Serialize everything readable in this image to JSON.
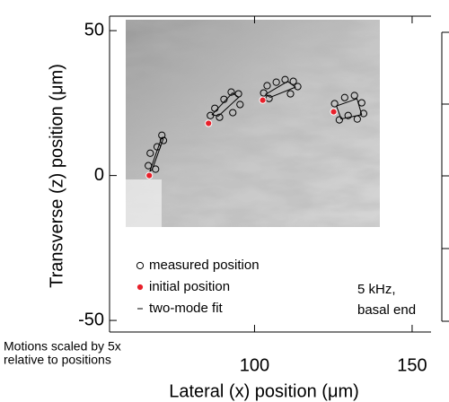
{
  "chart_data": {
    "type": "scatter",
    "xlabel": "Lateral (x) position (μm)",
    "ylabel": "Transverse (z) position (μm)",
    "xlim": [
      54,
      156
    ],
    "xticks": [
      100,
      150
    ],
    "ylim": [
      -54,
      55
    ],
    "yticks": [
      -50,
      0,
      50
    ],
    "series": [
      {
        "name": "measured position",
        "kind": "measured",
        "color": "#000000",
        "groups": [
          {
            "x": [
              66.3,
              66.9,
              69.1,
              70.6,
              71.1,
              68.6
            ],
            "y": [
              3.4,
              7.7,
              9.9,
              13.9,
              12.1,
              2.2
            ]
          },
          {
            "x": [
              86.0,
              87.4,
              90.3,
              92.6,
              94.9,
              95.4,
              93.1,
              88.9
            ],
            "y": [
              20.7,
              23.2,
              26.3,
              28.8,
              28.2,
              24.5,
              21.7,
              20.1
            ]
          },
          {
            "x": [
              102.9,
              104.0,
              106.9,
              109.7,
              112.3,
              113.7,
              111.4,
              104.6
            ],
            "y": [
              28.5,
              31.0,
              32.2,
              33.1,
              32.5,
              30.7,
              28.2,
              26.6
            ]
          },
          {
            "x": [
              125.4,
              128.6,
              131.7,
              134.0,
              134.6,
              132.6,
              129.7,
              126.9
            ],
            "y": [
              24.8,
              26.9,
              27.6,
              25.1,
              21.4,
              19.5,
              20.7,
              19.2
            ]
          }
        ]
      },
      {
        "name": "initial position",
        "kind": "initial",
        "color": "#e8202a",
        "x": [
          66.6,
          85.4,
          102.6,
          125.1
        ],
        "y": [
          0,
          18.0,
          26.0,
          22.0
        ]
      },
      {
        "name": "two-mode fit",
        "kind": "fit",
        "color": "#000000",
        "groups": [
          {
            "x": [
              66.8,
              70.5,
              71.0,
              67.5
            ],
            "y": [
              1.5,
              13.0,
              12.5,
              2.0
            ]
          },
          {
            "x": [
              86.5,
              93.0,
              95.0,
              88.5
            ],
            "y": [
              21.0,
              28.5,
              27.0,
              20.5
            ]
          },
          {
            "x": [
              103.5,
              110.5,
              113.0,
              105.0
            ],
            "y": [
              28.0,
              32.5,
              30.5,
              27.0
            ]
          },
          {
            "x": [
              126.0,
              132.5,
              134.0,
              127.5
            ],
            "y": [
              24.0,
              26.5,
              21.0,
              19.5
            ]
          }
        ]
      }
    ],
    "annotations": [
      "5 kHz,",
      "basal end",
      "Motions scaled by 5x",
      "relative to positions"
    ]
  }
}
